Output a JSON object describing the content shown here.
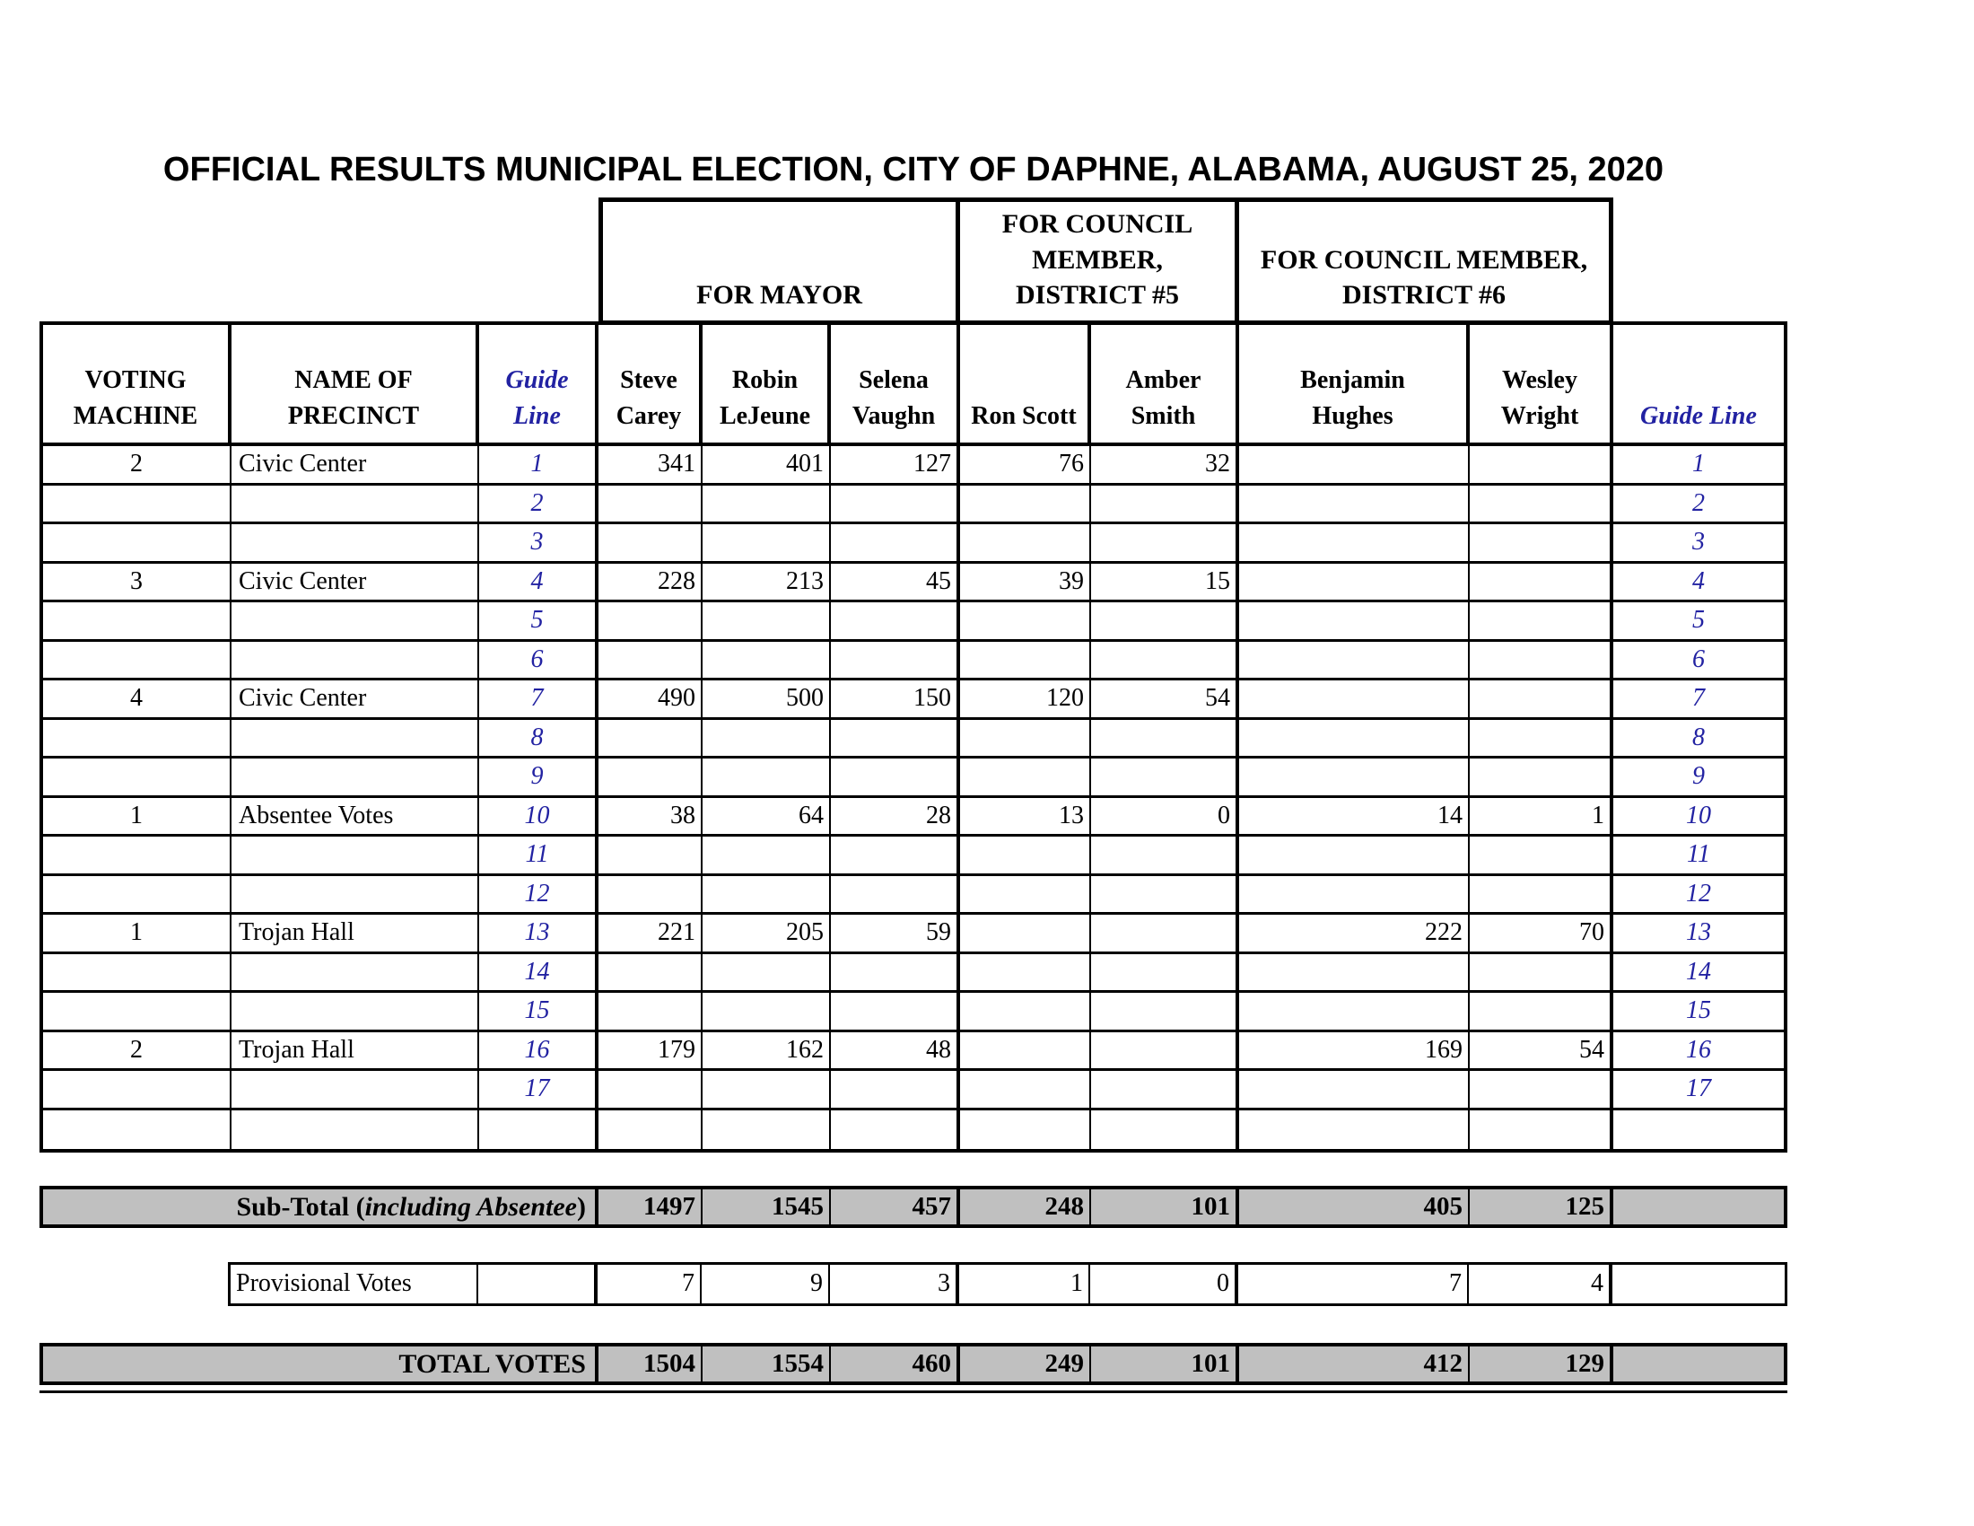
{
  "title": "OFFICIAL RESULTS MUNICIPAL ELECTION, CITY OF DAPHNE, ALABAMA, AUGUST 25, 2020",
  "colors": {
    "accent_blue": "#2222A2",
    "summary_gray": "#C0C0C0",
    "border_black": "#000000"
  },
  "group_headers": {
    "mayor": "FOR MAYOR",
    "district5": "FOR COUNCIL\nMEMBER,\nDISTRICT #5",
    "district6": "FOR COUNCIL MEMBER,\nDISTRICT #6"
  },
  "columns": {
    "voting_machine": "VOTING\nMACHINE",
    "name_of_precinct": "NAME OF\nPRECINCT",
    "guide_line": "Guide\nLine",
    "candidates": [
      "Steve\nCarey",
      "Robin\nLeJeune",
      "Selena\nVaughn",
      "Ron Scott",
      "Amber\nSmith",
      "Benjamin\nHughes",
      "Wesley\nWright"
    ],
    "guide_line_right": "Guide Line"
  },
  "table": {
    "rows": [
      {
        "m": "2",
        "p": "Civic Center",
        "g": "1",
        "v": [
          "341",
          "401",
          "127",
          "76",
          "32",
          "",
          ""
        ],
        "gr": "1"
      },
      {
        "m": "",
        "p": "",
        "g": "2",
        "v": [
          "",
          "",
          "",
          "",
          "",
          "",
          ""
        ],
        "gr": "2"
      },
      {
        "m": "",
        "p": "",
        "g": "3",
        "v": [
          "",
          "",
          "",
          "",
          "",
          "",
          ""
        ],
        "gr": "3"
      },
      {
        "m": "3",
        "p": "Civic Center",
        "g": "4",
        "v": [
          "228",
          "213",
          "45",
          "39",
          "15",
          "",
          ""
        ],
        "gr": "4"
      },
      {
        "m": "",
        "p": "",
        "g": "5",
        "v": [
          "",
          "",
          "",
          "",
          "",
          "",
          ""
        ],
        "gr": "5"
      },
      {
        "m": "",
        "p": "",
        "g": "6",
        "v": [
          "",
          "",
          "",
          "",
          "",
          "",
          ""
        ],
        "gr": "6"
      },
      {
        "m": "4",
        "p": "Civic Center",
        "g": "7",
        "v": [
          "490",
          "500",
          "150",
          "120",
          "54",
          "",
          ""
        ],
        "gr": "7"
      },
      {
        "m": "",
        "p": "",
        "g": "8",
        "v": [
          "",
          "",
          "",
          "",
          "",
          "",
          ""
        ],
        "gr": "8"
      },
      {
        "m": "",
        "p": "",
        "g": "9",
        "v": [
          "",
          "",
          "",
          "",
          "",
          "",
          ""
        ],
        "gr": "9"
      },
      {
        "m": "1",
        "p": "Absentee Votes",
        "g": "10",
        "v": [
          "38",
          "64",
          "28",
          "13",
          "0",
          "14",
          "1"
        ],
        "gr": "10"
      },
      {
        "m": "",
        "p": "",
        "g": "11",
        "v": [
          "",
          "",
          "",
          "",
          "",
          "",
          ""
        ],
        "gr": "11"
      },
      {
        "m": "",
        "p": "",
        "g": "12",
        "v": [
          "",
          "",
          "",
          "",
          "",
          "",
          ""
        ],
        "gr": "12"
      },
      {
        "m": "1",
        "p": "Trojan Hall",
        "g": "13",
        "v": [
          "221",
          "205",
          "59",
          "",
          "",
          "222",
          "70"
        ],
        "gr": "13"
      },
      {
        "m": "",
        "p": "",
        "g": "14",
        "v": [
          "",
          "",
          "",
          "",
          "",
          "",
          ""
        ],
        "gr": "14"
      },
      {
        "m": "",
        "p": "",
        "g": "15",
        "v": [
          "",
          "",
          "",
          "",
          "",
          "",
          ""
        ],
        "gr": "15"
      },
      {
        "m": "2",
        "p": "Trojan Hall",
        "g": "16",
        "v": [
          "179",
          "162",
          "48",
          "",
          "",
          "169",
          "54"
        ],
        "gr": "16"
      },
      {
        "m": "",
        "p": "",
        "g": "17",
        "v": [
          "",
          "",
          "",
          "",
          "",
          "",
          ""
        ],
        "gr": "17"
      },
      {
        "m": "",
        "p": "",
        "g": "",
        "v": [
          "",
          "",
          "",
          "",
          "",
          "",
          ""
        ],
        "gr": ""
      }
    ]
  },
  "subtotal": {
    "label_prefix": "Sub-Total (",
    "label_italic": "including Absentee",
    "label_suffix": ")",
    "values": [
      "1497",
      "1545",
      "457",
      "248",
      "101",
      "405",
      "125"
    ]
  },
  "provisional": {
    "label": "Provisional Votes",
    "values": [
      "7",
      "9",
      "3",
      "1",
      "0",
      "7",
      "4"
    ]
  },
  "total": {
    "label": "TOTAL VOTES",
    "values": [
      "1504",
      "1554",
      "460",
      "249",
      "101",
      "412",
      "129"
    ]
  }
}
